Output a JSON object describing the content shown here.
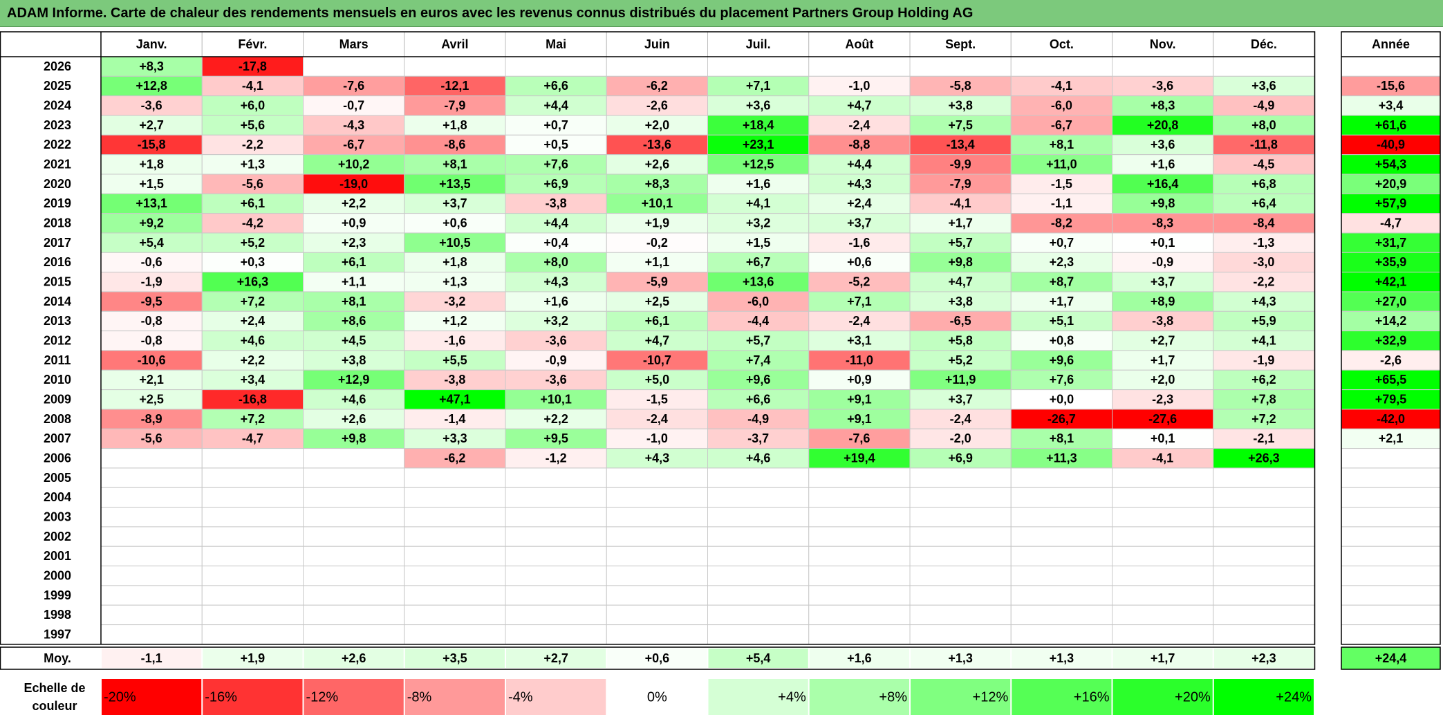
{
  "title": "ADAM Informe. Carte de chaleur des rendements mensuels en euros avec les revenus connus distribués du placement Partners Group Holding AG",
  "chart_data": {
    "type": "heatmap",
    "months": [
      "Janv.",
      "Févr.",
      "Mars",
      "Avril",
      "Mai",
      "Juin",
      "Juil.",
      "Août",
      "Sept.",
      "Oct.",
      "Nov.",
      "Déc."
    ],
    "year_header": "Année",
    "avg_label": "Moy.",
    "scale_label": "Echelle de couleur",
    "rows": [
      {
        "year": "2026",
        "values": [
          "+8,3",
          "-17,8",
          "",
          "",
          "",
          "",
          "",
          "",
          "",
          "",
          "",
          ""
        ],
        "annual": ""
      },
      {
        "year": "2025",
        "values": [
          "+12,8",
          "-4,1",
          "-7,6",
          "-12,1",
          "+6,6",
          "-6,2",
          "+7,1",
          "-1,0",
          "-5,8",
          "-4,1",
          "-3,6",
          "+3,6"
        ],
        "annual": "-15,6"
      },
      {
        "year": "2024",
        "values": [
          "-3,6",
          "+6,0",
          "-0,7",
          "-7,9",
          "+4,4",
          "-2,6",
          "+3,6",
          "+4,7",
          "+3,8",
          "-6,0",
          "+8,3",
          "-4,9"
        ],
        "annual": "+3,4"
      },
      {
        "year": "2023",
        "values": [
          "+2,7",
          "+5,6",
          "-4,3",
          "+1,8",
          "+0,7",
          "+2,0",
          "+18,4",
          "-2,4",
          "+7,5",
          "-6,7",
          "+20,8",
          "+8,0"
        ],
        "annual": "+61,6"
      },
      {
        "year": "2022",
        "values": [
          "-15,8",
          "-2,2",
          "-6,7",
          "-8,6",
          "+0,5",
          "-13,6",
          "+23,1",
          "-8,8",
          "-13,4",
          "+8,1",
          "+3,6",
          "-11,8"
        ],
        "annual": "-40,9"
      },
      {
        "year": "2021",
        "values": [
          "+1,8",
          "+1,3",
          "+10,2",
          "+8,1",
          "+7,6",
          "+2,6",
          "+12,5",
          "+4,4",
          "-9,9",
          "+11,0",
          "+1,6",
          "-4,5"
        ],
        "annual": "+54,3"
      },
      {
        "year": "2020",
        "values": [
          "+1,5",
          "-5,6",
          "-19,0",
          "+13,5",
          "+6,9",
          "+8,3",
          "+1,6",
          "+4,3",
          "-7,9",
          "-1,5",
          "+16,4",
          "+6,8"
        ],
        "annual": "+20,9"
      },
      {
        "year": "2019",
        "values": [
          "+13,1",
          "+6,1",
          "+2,2",
          "+3,7",
          "-3,8",
          "+10,1",
          "+4,1",
          "+2,4",
          "-4,1",
          "-1,1",
          "+9,8",
          "+6,4"
        ],
        "annual": "+57,9"
      },
      {
        "year": "2018",
        "values": [
          "+9,2",
          "-4,2",
          "+0,9",
          "+0,6",
          "+4,4",
          "+1,9",
          "+3,2",
          "+3,7",
          "+1,7",
          "-8,2",
          "-8,3",
          "-8,4"
        ],
        "annual": "-4,7"
      },
      {
        "year": "2017",
        "values": [
          "+5,4",
          "+5,2",
          "+2,3",
          "+10,5",
          "+0,4",
          "-0,2",
          "+1,5",
          "-1,6",
          "+5,7",
          "+0,7",
          "+0,1",
          "-1,3"
        ],
        "annual": "+31,7"
      },
      {
        "year": "2016",
        "values": [
          "-0,6",
          "+0,3",
          "+6,1",
          "+1,8",
          "+8,0",
          "+1,1",
          "+6,7",
          "+0,6",
          "+9,8",
          "+2,3",
          "-0,9",
          "-3,0"
        ],
        "annual": "+35,9"
      },
      {
        "year": "2015",
        "values": [
          "-1,9",
          "+16,3",
          "+1,1",
          "+1,3",
          "+4,3",
          "-5,9",
          "+13,6",
          "-5,2",
          "+4,7",
          "+8,7",
          "+3,7",
          "-2,2"
        ],
        "annual": "+42,1"
      },
      {
        "year": "2014",
        "values": [
          "-9,5",
          "+7,2",
          "+8,1",
          "-3,2",
          "+1,6",
          "+2,5",
          "-6,0",
          "+7,1",
          "+3,8",
          "+1,7",
          "+8,9",
          "+4,3"
        ],
        "annual": "+27,0"
      },
      {
        "year": "2013",
        "values": [
          "-0,8",
          "+2,4",
          "+8,6",
          "+1,2",
          "+3,2",
          "+6,1",
          "-4,4",
          "-2,4",
          "-6,5",
          "+5,1",
          "-3,8",
          "+5,9"
        ],
        "annual": "+14,2"
      },
      {
        "year": "2012",
        "values": [
          "-0,8",
          "+4,6",
          "+4,5",
          "-1,6",
          "-3,6",
          "+4,7",
          "+5,7",
          "+3,1",
          "+5,8",
          "+0,8",
          "+2,7",
          "+4,1"
        ],
        "annual": "+32,9"
      },
      {
        "year": "2011",
        "values": [
          "-10,6",
          "+2,2",
          "+3,8",
          "+5,5",
          "-0,9",
          "-10,7",
          "+7,4",
          "-11,0",
          "+5,2",
          "+9,6",
          "+1,7",
          "-1,9"
        ],
        "annual": "-2,6"
      },
      {
        "year": "2010",
        "values": [
          "+2,1",
          "+3,4",
          "+12,9",
          "-3,8",
          "-3,6",
          "+5,0",
          "+9,6",
          "+0,9",
          "+11,9",
          "+7,6",
          "+2,0",
          "+6,2"
        ],
        "annual": "+65,5"
      },
      {
        "year": "2009",
        "values": [
          "+2,5",
          "-16,8",
          "+4,6",
          "+47,1",
          "+10,1",
          "-1,5",
          "+6,6",
          "+9,1",
          "+3,7",
          "+0,0",
          "-2,3",
          "+7,8"
        ],
        "annual": "+79,5"
      },
      {
        "year": "2008",
        "values": [
          "-8,9",
          "+7,2",
          "+2,6",
          "-1,4",
          "+2,2",
          "-2,4",
          "-4,9",
          "+9,1",
          "-2,4",
          "-26,7",
          "-27,6",
          "+7,2"
        ],
        "annual": "-42,0"
      },
      {
        "year": "2007",
        "values": [
          "-5,6",
          "-4,7",
          "+9,8",
          "+3,3",
          "+9,5",
          "-1,0",
          "-3,7",
          "-7,6",
          "-2,0",
          "+8,1",
          "+0,1",
          "-2,1"
        ],
        "annual": "+2,1"
      },
      {
        "year": "2006",
        "values": [
          "",
          "",
          "",
          "-6,2",
          "-1,2",
          "+4,3",
          "+4,6",
          "+19,4",
          "+6,9",
          "+11,3",
          "-4,1",
          "+26,3"
        ],
        "annual": ""
      },
      {
        "year": "2005",
        "values": [
          "",
          "",
          "",
          "",
          "",
          "",
          "",
          "",
          "",
          "",
          "",
          ""
        ],
        "annual": ""
      },
      {
        "year": "2004",
        "values": [
          "",
          "",
          "",
          "",
          "",
          "",
          "",
          "",
          "",
          "",
          "",
          ""
        ],
        "annual": ""
      },
      {
        "year": "2003",
        "values": [
          "",
          "",
          "",
          "",
          "",
          "",
          "",
          "",
          "",
          "",
          "",
          ""
        ],
        "annual": ""
      },
      {
        "year": "2002",
        "values": [
          "",
          "",
          "",
          "",
          "",
          "",
          "",
          "",
          "",
          "",
          "",
          ""
        ],
        "annual": ""
      },
      {
        "year": "2001",
        "values": [
          "",
          "",
          "",
          "",
          "",
          "",
          "",
          "",
          "",
          "",
          "",
          ""
        ],
        "annual": ""
      },
      {
        "year": "2000",
        "values": [
          "",
          "",
          "",
          "",
          "",
          "",
          "",
          "",
          "",
          "",
          "",
          ""
        ],
        "annual": ""
      },
      {
        "year": "1999",
        "values": [
          "",
          "",
          "",
          "",
          "",
          "",
          "",
          "",
          "",
          "",
          "",
          ""
        ],
        "annual": ""
      },
      {
        "year": "1998",
        "values": [
          "",
          "",
          "",
          "",
          "",
          "",
          "",
          "",
          "",
          "",
          "",
          ""
        ],
        "annual": ""
      },
      {
        "year": "1997",
        "values": [
          "",
          "",
          "",
          "",
          "",
          "",
          "",
          "",
          "",
          "",
          "",
          ""
        ],
        "annual": ""
      }
    ],
    "averages": [
      "-1,1",
      "+1,9",
      "+2,6",
      "+3,5",
      "+2,7",
      "+0,6",
      "+5,4",
      "+1,6",
      "+1,3",
      "+1,3",
      "+1,7",
      "+2,3"
    ],
    "annual_average": "+24,4",
    "scale": [
      "-20%",
      "-16%",
      "-12%",
      "-8%",
      "-4%",
      "0%",
      "+4%",
      "+8%",
      "+12%",
      "+16%",
      "+20%",
      "+24%"
    ],
    "colors": {
      "negative_max": "#ff0000",
      "neutral": "#ffffff",
      "positive_max": "#00ff00",
      "title_bar": "#7cc97c"
    }
  }
}
